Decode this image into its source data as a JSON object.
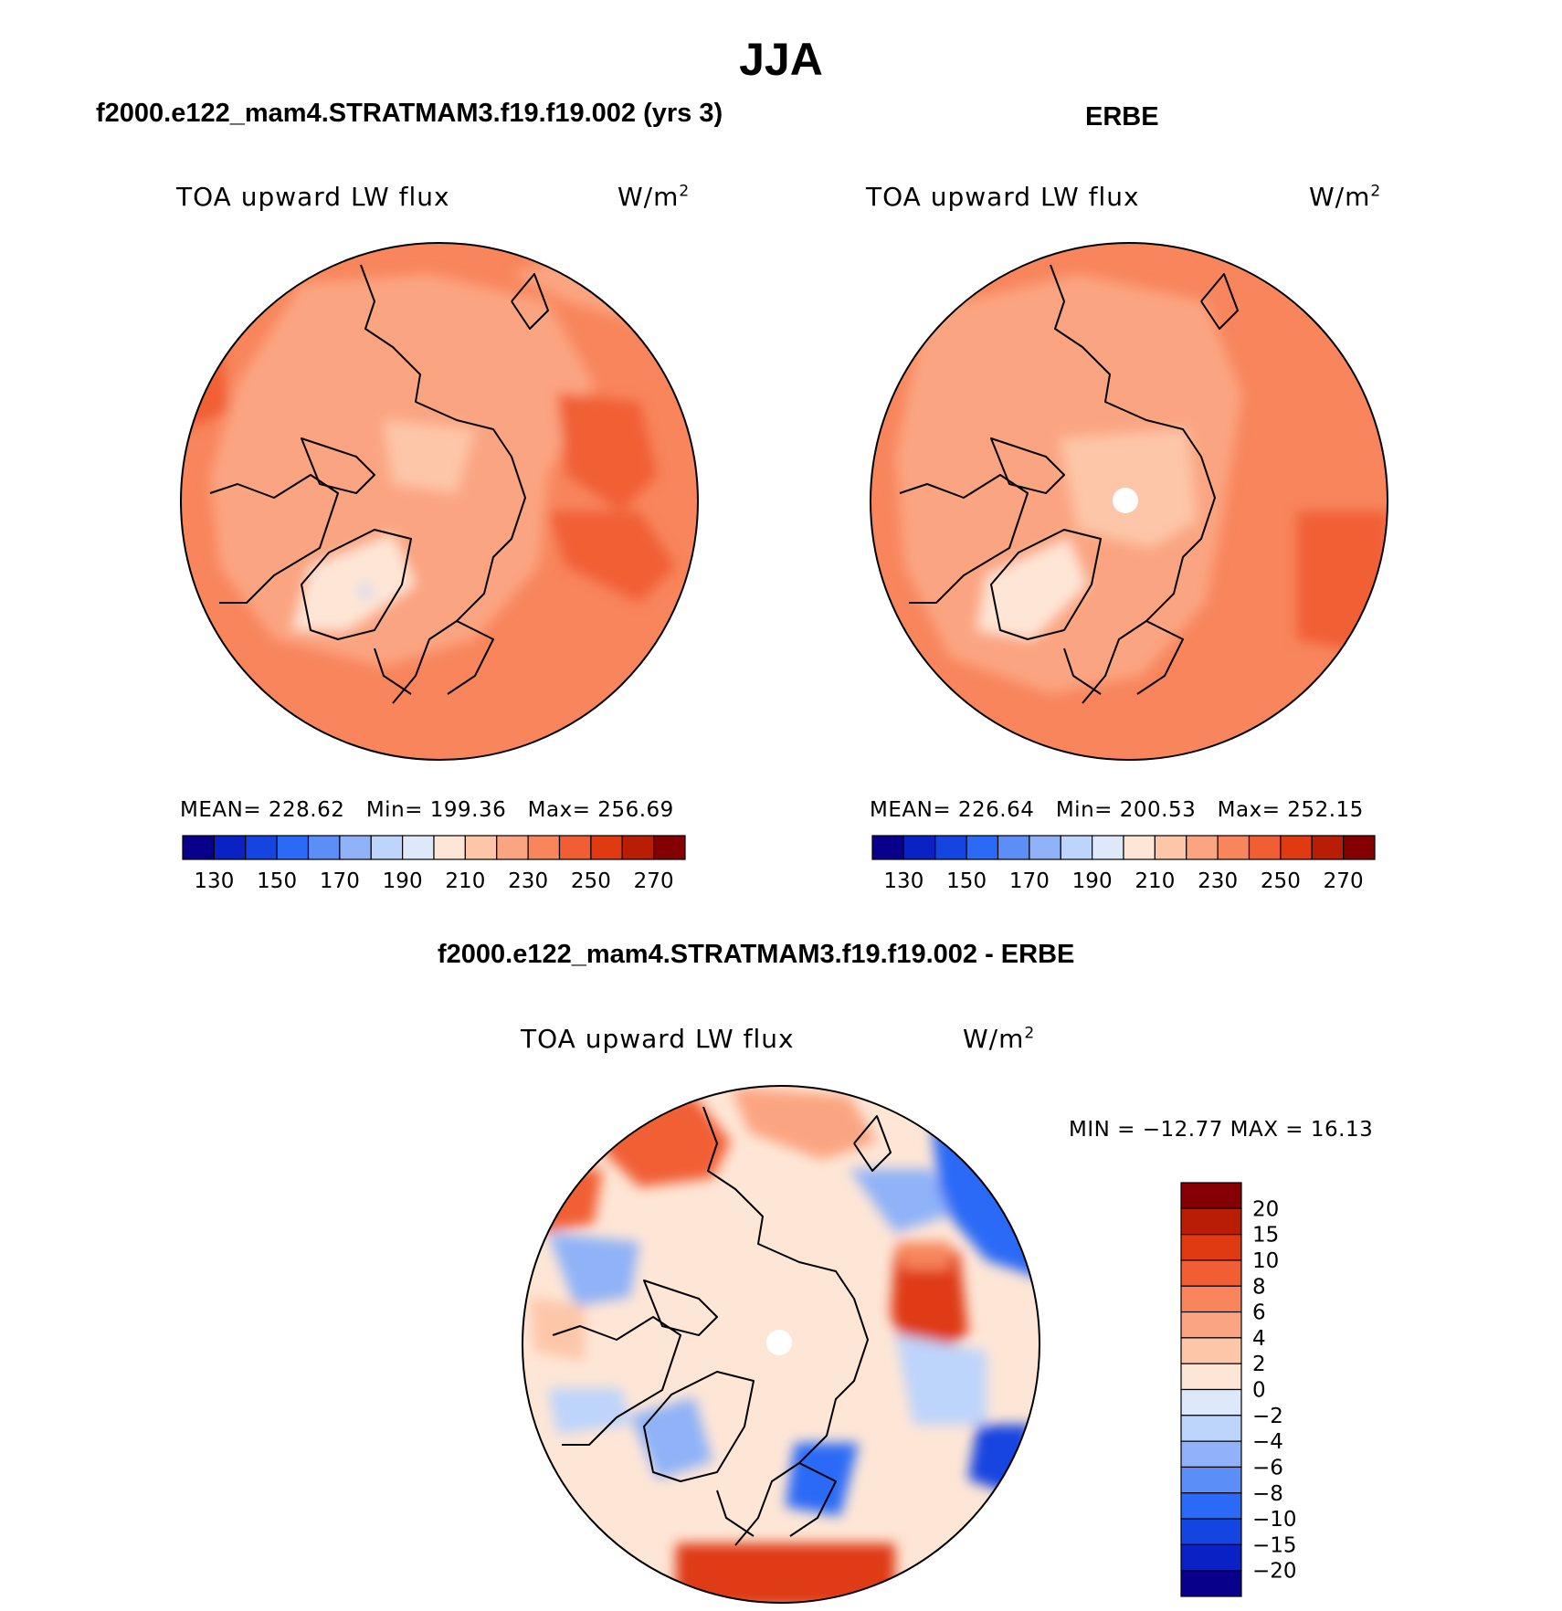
{
  "page_title": "JJA",
  "panels": [
    {
      "title": "f2000.e122_mam4.STRATMAM3.f19.f19.002 (yrs 3)",
      "variable": "TOA upward LW flux",
      "units": "W/m",
      "units_exp": "2",
      "stats": {
        "mean_label": "MEAN=",
        "mean": "228.62",
        "min_label": "Min=",
        "min": "199.36",
        "max_label": "Max=",
        "max": "256.69"
      }
    },
    {
      "title": "ERBE",
      "variable": "TOA upward LW flux",
      "units": "W/m",
      "units_exp": "2",
      "stats": {
        "mean_label": "MEAN=",
        "mean": "226.64",
        "min_label": "Min=",
        "min": "200.53",
        "max_label": "Max=",
        "max": "252.15"
      }
    }
  ],
  "diff_panel": {
    "title": "f2000.e122_mam4.STRATMAM3.f19.f19.002 - ERBE",
    "variable": "TOA upward LW flux",
    "units": "W/m",
    "units_exp": "2",
    "minmax_text": "MIN = −12.77 MAX =   16.13"
  },
  "chart_data": [
    {
      "type": "heatmap",
      "projection": "north polar stereographic",
      "title": "f2000.e122_mam4.STRATMAM3.f19.f19.002 (yrs 3)",
      "variable": "TOA upward LW flux",
      "units": "W/m2",
      "mean": 228.62,
      "min": 199.36,
      "max": 256.69,
      "colorbar": {
        "orientation": "horizontal",
        "tick_labels": [
          "130",
          "150",
          "170",
          "190",
          "210",
          "230",
          "250",
          "270"
        ],
        "colors": [
          "#08008a",
          "#0a22c4",
          "#1545e0",
          "#2a6af6",
          "#5b8ef6",
          "#8fb2f8",
          "#bdd4fb",
          "#dde9fb",
          "#fee6d6",
          "#fdc6a8",
          "#fba481",
          "#f8855c",
          "#f15e34",
          "#df3a12",
          "#b91d05",
          "#850002"
        ]
      }
    },
    {
      "type": "heatmap",
      "projection": "north polar stereographic",
      "title": "ERBE",
      "variable": "TOA upward LW flux",
      "units": "W/m2",
      "mean": 226.64,
      "min": 200.53,
      "max": 252.15,
      "colorbar": {
        "orientation": "horizontal",
        "tick_labels": [
          "130",
          "150",
          "170",
          "190",
          "210",
          "230",
          "250",
          "270"
        ],
        "colors": [
          "#08008a",
          "#0a22c4",
          "#1545e0",
          "#2a6af6",
          "#5b8ef6",
          "#8fb2f8",
          "#bdd4fb",
          "#dde9fb",
          "#fee6d6",
          "#fdc6a8",
          "#fba481",
          "#f8855c",
          "#f15e34",
          "#df3a12",
          "#b91d05",
          "#850002"
        ]
      }
    },
    {
      "type": "heatmap",
      "projection": "north polar stereographic",
      "title": "f2000.e122_mam4.STRATMAM3.f19.f19.002 - ERBE",
      "variable": "TOA upward LW flux",
      "units": "W/m2",
      "min": -12.77,
      "max": 16.13,
      "colorbar": {
        "orientation": "vertical",
        "tick_labels": [
          "20",
          "15",
          "10",
          "8",
          "6",
          "4",
          "2",
          "0",
          "−2",
          "−4",
          "−6",
          "−8",
          "−10",
          "−15",
          "−20"
        ],
        "colors": [
          "#850002",
          "#b91d05",
          "#df3a12",
          "#f15e34",
          "#f8855c",
          "#fba481",
          "#fdc6a8",
          "#fee6d6",
          "#dde9fb",
          "#bdd4fb",
          "#8fb2f8",
          "#5b8ef6",
          "#2a6af6",
          "#1545e0",
          "#0a22c4",
          "#08008a"
        ]
      }
    }
  ]
}
